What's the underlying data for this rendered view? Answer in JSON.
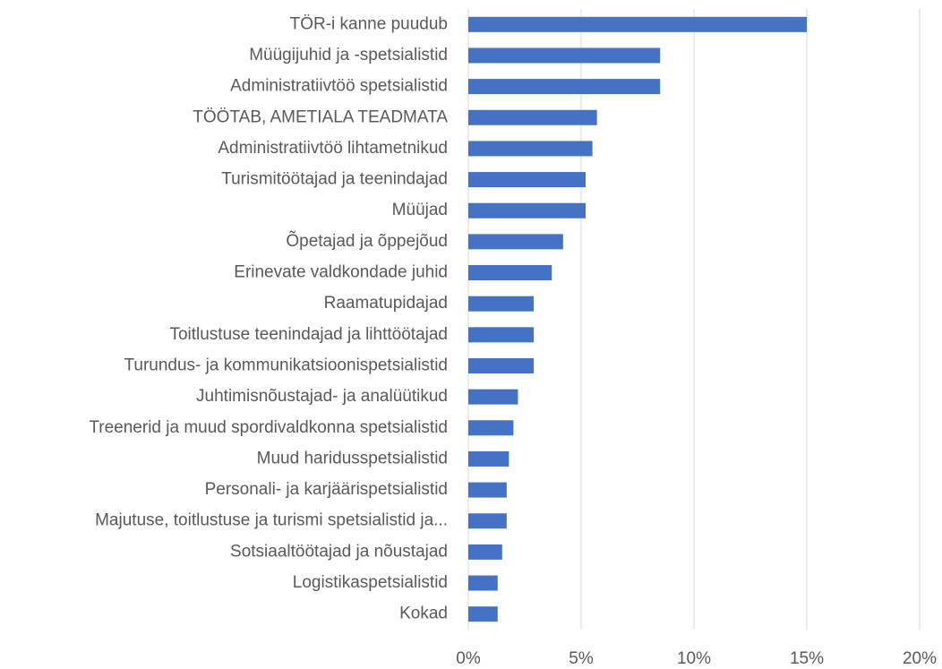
{
  "chart_data": {
    "type": "hbar",
    "categories": [
      "TÖR-i kanne puudub",
      "Müügijuhid ja -spetsialistid",
      "Administratiivtöö spetsialistid",
      "TÖÖTAB, AMETIALA TEADMATA",
      "Administratiivtöö lihtametnikud",
      "Turismitöötajad ja teenindajad",
      "Müüjad",
      "Õpetajad ja õppejõud",
      "Erinevate valdkondade juhid",
      "Raamatupidajad",
      "Toitlustuse teenindajad ja lihttöötajad",
      "Turundus- ja kommunikatsioonispetsialistid",
      "Juhtimisnõustajad- ja analüütikud",
      "Treenerid ja muud spordivaldkonna spetsialistid",
      "Muud haridusspetsialistid",
      "Personali- ja karjäärispetsialistid",
      "Majutuse, toitlustuse ja turismi spetsialistid ja...",
      "Sotsiaaltöötajad ja nõustajad",
      "Logistikaspetsialistid",
      "Kokad"
    ],
    "values": [
      15.0,
      8.5,
      8.5,
      5.7,
      5.5,
      5.2,
      5.2,
      4.2,
      3.7,
      2.9,
      2.9,
      2.9,
      2.2,
      2.0,
      1.8,
      1.7,
      1.7,
      1.5,
      1.3,
      1.3
    ],
    "color": "#4472c4",
    "xlim": [
      0,
      20
    ],
    "xticks": [
      {
        "value": 0,
        "label": "0%"
      },
      {
        "value": 5,
        "label": "5%"
      },
      {
        "value": 10,
        "label": "10%"
      },
      {
        "value": 15,
        "label": "15%"
      },
      {
        "value": 20,
        "label": "20%"
      }
    ],
    "grid": true
  }
}
